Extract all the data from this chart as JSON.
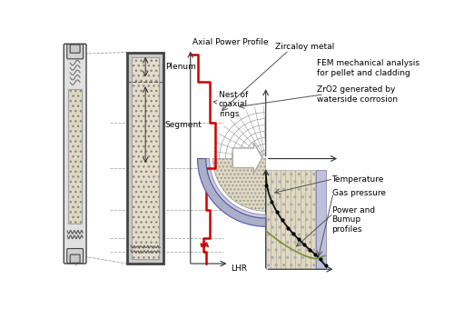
{
  "bg_color": "#ffffff",
  "rod_color": "#d8d8d8",
  "fuel_hatch_color": "#e8e0d0",
  "clad_color": "#c0c0c0",
  "red_color": "#cc0000",
  "zircaloy_color": "#b8bcd0",
  "zro2_color": "#d0d0e0",
  "fuel_pellet_color": "#e0d8c0",
  "arrow_gray": "#888888",
  "line_gray": "#555555",
  "dash_gray": "#999999",
  "olive_color": "#7a9030",
  "text_size": 6.5,
  "labels_top_right": [
    "Zircaloy metal",
    "FEM mechanical analysis\nfor pellet and cladding",
    "ZrO2 generated by\nwaterside corrosion"
  ],
  "labels_bot_right": [
    "Temperature",
    "Gas pressure",
    "Power and\nBumup\nprofiles"
  ]
}
